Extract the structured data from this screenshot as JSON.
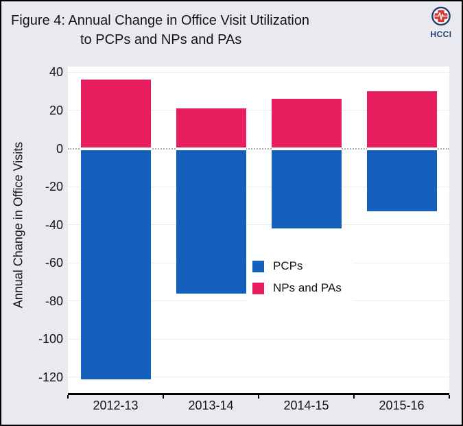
{
  "figure": {
    "title_line1": "Figure 4: Annual Change in Office Visit Utilization",
    "title_line2": "to PCPs and NPs and PAs",
    "logo_text": "HCCI"
  },
  "colors": {
    "background": "#e8eaef",
    "plot_background": "#ffffff",
    "gridline": "#ebecf2",
    "zero_line": "#aeaeb4",
    "axis": "#000000",
    "pcps_blue": "#1560bd",
    "nps_pas_pink": "#e81f5f",
    "logo_navy": "#1d3c6e",
    "logo_red": "#d6382e"
  },
  "chart_data": {
    "type": "bar",
    "stacked": true,
    "title": "Figure 4: Annual Change in Office Visit Utilization to PCPs and NPs and PAs",
    "xlabel": "",
    "ylabel": "Annual Change in Office Visits",
    "categories": [
      "2012-13",
      "2013-14",
      "2014-15",
      "2015-16"
    ],
    "series": [
      {
        "name": "PCPs",
        "color": "#1560bd",
        "values": [
          -121,
          -76,
          -42,
          -33
        ]
      },
      {
        "name": "NPs and PAs",
        "color": "#e81f5f",
        "values": [
          36,
          21,
          26,
          30
        ]
      }
    ],
    "yticks": [
      40,
      20,
      0,
      -20,
      -40,
      -60,
      -80,
      -100,
      -120
    ],
    "ylim": [
      -129,
      43
    ],
    "grid": true,
    "zero_line": "dotted",
    "legend_position": "lower right"
  }
}
